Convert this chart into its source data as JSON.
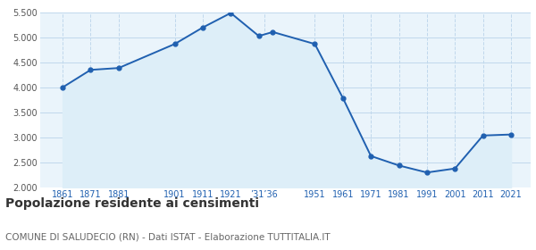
{
  "years": [
    1861,
    1871,
    1881,
    1901,
    1911,
    1921,
    1931,
    1936,
    1951,
    1961,
    1971,
    1981,
    1991,
    2001,
    2011,
    2021
  ],
  "population": [
    4003,
    4353,
    4390,
    4870,
    5200,
    5490,
    5030,
    5110,
    4870,
    3790,
    2630,
    2440,
    2300,
    2380,
    3040,
    3060
  ],
  "x_tick_positions": [
    1861,
    1871,
    1881,
    1901,
    1911,
    1921,
    1933,
    1951,
    1961,
    1971,
    1981,
    1991,
    2001,
    2011,
    2021
  ],
  "x_tick_labels": [
    "1861",
    "1871",
    "1881",
    "1901",
    "1911",
    "1921",
    "’31’36",
    "1951",
    "1961",
    "1971",
    "1981",
    "1991",
    "2001",
    "2011",
    "2021"
  ],
  "line_color": "#2060b0",
  "fill_color": "#ddeef8",
  "marker_color": "#2060b0",
  "background_color": "#eaf4fb",
  "grid_color": "#c0d8ec",
  "ylim": [
    2000,
    5500
  ],
  "yticks": [
    2000,
    2500,
    3000,
    3500,
    4000,
    4500,
    5000,
    5500
  ],
  "xlim_left": 1853,
  "xlim_right": 2028,
  "title": "Popolazione residente ai censimenti",
  "subtitle": "COMUNE DI SALUDECIO (RN) - Dati ISTAT - Elaborazione TUTTITALIA.IT",
  "title_fontsize": 10,
  "subtitle_fontsize": 7.5
}
